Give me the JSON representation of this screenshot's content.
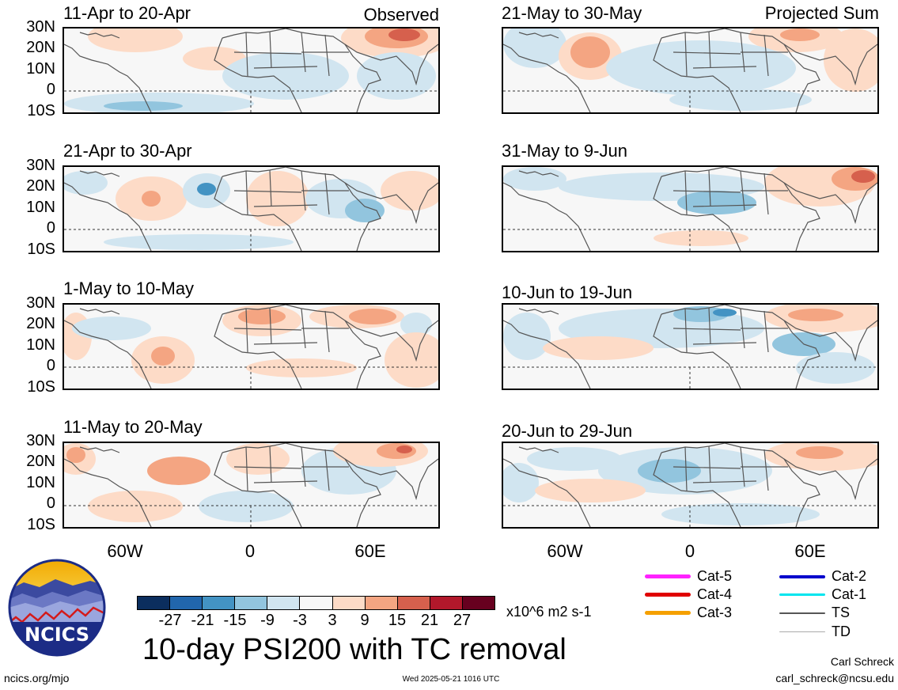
{
  "panels_left": [
    {
      "title": "11-Apr to 20-Apr",
      "tag": "Observed"
    },
    {
      "title": "21-Apr to 30-Apr",
      "tag": ""
    },
    {
      "title": "1-May to 10-May",
      "tag": ""
    },
    {
      "title": "11-May to 20-May",
      "tag": ""
    }
  ],
  "panels_right": [
    {
      "title": "21-May to 30-May",
      "tag": "Projected Sum"
    },
    {
      "title": "31-May to 9-Jun",
      "tag": ""
    },
    {
      "title": "10-Jun to 19-Jun",
      "tag": ""
    },
    {
      "title": "20-Jun to 29-Jun",
      "tag": ""
    }
  ],
  "lat_labels": [
    "30N",
    "20N",
    "10N",
    "0",
    "10S"
  ],
  "lon_labels": [
    "60W",
    "0",
    "60E"
  ],
  "colorbar": {
    "labels": [
      "-27",
      "-21",
      "-15",
      "-9",
      "-3",
      "3",
      "9",
      "15",
      "21",
      "27"
    ],
    "colors": [
      "#0b2e5e",
      "#2166ac",
      "#4393c3",
      "#92c5de",
      "#d1e5f0",
      "#f7f7f7",
      "#fddbc7",
      "#f4a582",
      "#d6604d",
      "#b2182b",
      "#67001f"
    ],
    "units": "x10^6 m2 s-1"
  },
  "legend": [
    {
      "label": "Cat-5",
      "color": "#ff22ff"
    },
    {
      "label": "Cat-4",
      "color": "#e00000"
    },
    {
      "label": "Cat-3",
      "color": "#f5a000"
    },
    {
      "label": "Cat-2",
      "color": "#0000cc"
    },
    {
      "label": "Cat-1",
      "color": "#00e5ee"
    },
    {
      "label": "TS",
      "color": "#555555"
    },
    {
      "label": "TD",
      "color": "#aaaaaa"
    }
  ],
  "logo_text": "NCICS",
  "main_title": "10-day PSI200 with TC removal",
  "author": "Carl Schreck",
  "email": "carl_schreck@ncsu.edu",
  "website": "ncics.org/mjo",
  "timestamp": "Wed 2025-05-21 1016 UTC"
}
